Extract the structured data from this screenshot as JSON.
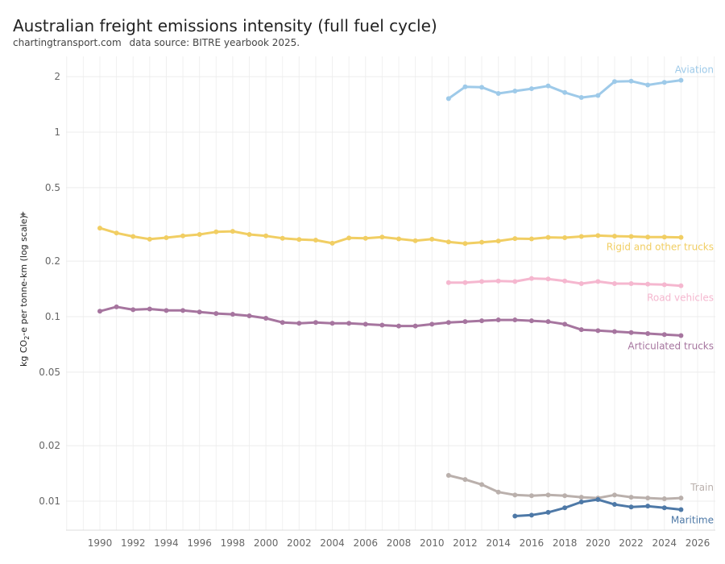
{
  "title": "Australian freight emissions intensity (full fuel cycle)",
  "subtitle_parts": [
    "chartingtransport.com",
    "data source: BITRE yearbook 2025."
  ],
  "chart_data": {
    "type": "line",
    "title": "Australian freight emissions intensity (full fuel cycle)",
    "ylabel_prefix": "kg CO",
    "ylabel_sub": "2",
    "ylabel_suffix": "-e per tonne-km (log scale)",
    "yscale": "log",
    "ylim": [
      0.0079,
      2.5
    ],
    "xlim": [
      1988,
      2027
    ],
    "x_ticks": [
      "1990",
      "1992",
      "1994",
      "1996",
      "1998",
      "2000",
      "2002",
      "2004",
      "2006",
      "2008",
      "2010",
      "2012",
      "2014",
      "2016",
      "2018",
      "2020",
      "2022",
      "2024",
      "2026"
    ],
    "y_ticks": [
      {
        "v": 2,
        "label": "2"
      },
      {
        "v": 1,
        "label": "1"
      },
      {
        "v": 0.5,
        "label": "0.5"
      },
      {
        "v": 0.2,
        "label": "0.2"
      },
      {
        "v": 0.1,
        "label": "0.1"
      },
      {
        "v": 0.05,
        "label": "0.05"
      },
      {
        "v": 0.02,
        "label": "0.02"
      },
      {
        "v": 0.01,
        "label": "0.01"
      }
    ],
    "grid": true,
    "legend": "direct labels at line ends",
    "series": [
      {
        "name": "Aviation",
        "color": "#9ecae9",
        "x": [
          2011,
          2012,
          2013,
          2014,
          2015,
          2016,
          2017,
          2018,
          2019,
          2020,
          2021,
          2022,
          2023,
          2024,
          2025
        ],
        "y": [
          1.52,
          1.76,
          1.75,
          1.62,
          1.67,
          1.72,
          1.78,
          1.64,
          1.54,
          1.58,
          1.88,
          1.89,
          1.8,
          1.86,
          1.91
        ]
      },
      {
        "name": "Rigid and other trucks",
        "color": "#f1ce63",
        "x": [
          1990,
          1991,
          1992,
          1993,
          1994,
          1995,
          1996,
          1997,
          1998,
          1999,
          2000,
          2001,
          2002,
          2003,
          2004,
          2005,
          2006,
          2007,
          2008,
          2009,
          2010,
          2011,
          2012,
          2013,
          2014,
          2015,
          2016,
          2017,
          2018,
          2019,
          2020,
          2021,
          2022,
          2023,
          2024,
          2025
        ],
        "y": [
          0.302,
          0.284,
          0.272,
          0.263,
          0.268,
          0.274,
          0.279,
          0.288,
          0.29,
          0.279,
          0.274,
          0.266,
          0.262,
          0.26,
          0.25,
          0.267,
          0.266,
          0.27,
          0.264,
          0.258,
          0.263,
          0.254,
          0.249,
          0.253,
          0.257,
          0.265,
          0.264,
          0.269,
          0.268,
          0.272,
          0.275,
          0.273,
          0.272,
          0.27,
          0.27,
          0.269
        ]
      },
      {
        "name": "Road vehicles",
        "color": "#f5b7cf",
        "x": [
          2011,
          2012,
          2013,
          2014,
          2015,
          2016,
          2017,
          2018,
          2019,
          2020,
          2021,
          2022,
          2023,
          2024,
          2025
        ],
        "y": [
          0.153,
          0.153,
          0.155,
          0.156,
          0.155,
          0.161,
          0.16,
          0.156,
          0.151,
          0.155,
          0.151,
          0.151,
          0.15,
          0.149,
          0.147
        ]
      },
      {
        "name": "Articulated trucks",
        "color": "#a6759f",
        "x": [
          1990,
          1991,
          1992,
          1993,
          1994,
          1995,
          1996,
          1997,
          1998,
          1999,
          2000,
          2001,
          2002,
          2003,
          2004,
          2005,
          2006,
          2007,
          2008,
          2009,
          2010,
          2011,
          2012,
          2013,
          2014,
          2015,
          2016,
          2017,
          2018,
          2019,
          2020,
          2021,
          2022,
          2023,
          2024,
          2025
        ],
        "y": [
          0.107,
          0.113,
          0.109,
          0.11,
          0.108,
          0.108,
          0.106,
          0.104,
          0.103,
          0.101,
          0.098,
          0.093,
          0.092,
          0.093,
          0.092,
          0.092,
          0.091,
          0.09,
          0.089,
          0.089,
          0.091,
          0.093,
          0.094,
          0.095,
          0.096,
          0.096,
          0.095,
          0.094,
          0.091,
          0.085,
          0.084,
          0.083,
          0.082,
          0.081,
          0.08,
          0.079
        ]
      },
      {
        "name": "Train",
        "color": "#bab0ac",
        "x": [
          2011,
          2012,
          2013,
          2014,
          2015,
          2016,
          2017,
          2018,
          2019,
          2020,
          2021,
          2022,
          2023,
          2024,
          2025
        ],
        "y": [
          0.0138,
          0.0131,
          0.0123,
          0.0112,
          0.0108,
          0.0107,
          0.0108,
          0.0107,
          0.0105,
          0.0104,
          0.0108,
          0.0105,
          0.0104,
          0.0103,
          0.0104
        ]
      },
      {
        "name": "Maritime",
        "color": "#4e79a7",
        "x": [
          2015,
          2016,
          2017,
          2018,
          2019,
          2020,
          2021,
          2022,
          2023,
          2024,
          2025
        ],
        "y": [
          0.0083,
          0.0084,
          0.0087,
          0.0092,
          0.0099,
          0.0102,
          0.0096,
          0.0093,
          0.0094,
          0.0092,
          0.009
        ]
      }
    ]
  }
}
